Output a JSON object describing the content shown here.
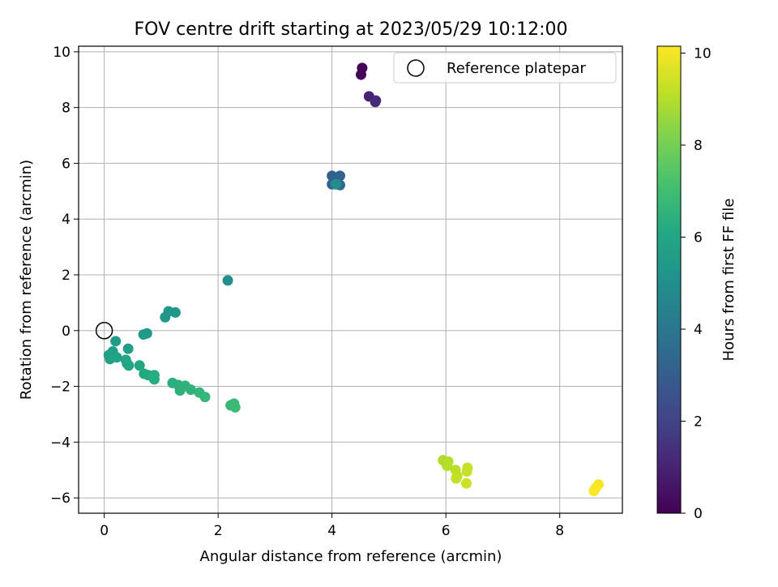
{
  "chart_data": {
    "type": "scatter",
    "title": "FOV centre drift starting at 2023/05/29 10:12:00",
    "xlabel": "Angular distance from reference (arcmin)",
    "ylabel": "Rotation from reference (arcmin)",
    "xlim": [
      -0.45,
      9.1
    ],
    "ylim": [
      -6.55,
      10.2
    ],
    "x_ticks": [
      "0",
      "2",
      "4",
      "6",
      "8"
    ],
    "y_ticks": [
      "−6",
      "−4",
      "−2",
      "0",
      "2",
      "4",
      "6",
      "8",
      "10"
    ],
    "grid": true,
    "legend": {
      "position": "top-right",
      "entries": [
        "Reference platepar"
      ]
    },
    "reference_point": {
      "x": 0,
      "y": 0
    },
    "colorbar": {
      "label": "Hours from first FF file",
      "colormap": "viridis",
      "range": [
        0,
        10.15
      ],
      "ticks": [
        "0",
        "2",
        "4",
        "6",
        "8",
        "10"
      ]
    },
    "points": [
      {
        "x": 4.53,
        "y": 9.42,
        "h": 0.05
      },
      {
        "x": 4.51,
        "y": 9.18,
        "h": 0.15
      },
      {
        "x": 4.65,
        "y": 8.4,
        "h": 1.0
      },
      {
        "x": 4.77,
        "y": 8.25,
        "h": 1.15
      },
      {
        "x": 4.76,
        "y": 8.2,
        "h": 1.25
      },
      {
        "x": 4.0,
        "y": 5.55,
        "h": 3.1
      },
      {
        "x": 4.14,
        "y": 5.55,
        "h": 3.2
      },
      {
        "x": 4.0,
        "y": 5.25,
        "h": 3.3
      },
      {
        "x": 4.14,
        "y": 5.22,
        "h": 3.4
      },
      {
        "x": 4.07,
        "y": 5.25,
        "h": 4.9
      },
      {
        "x": 2.17,
        "y": 1.8,
        "h": 5.05
      },
      {
        "x": 1.13,
        "y": 0.69,
        "h": 5.3
      },
      {
        "x": 1.25,
        "y": 0.65,
        "h": 5.35
      },
      {
        "x": 1.07,
        "y": 0.48,
        "h": 5.4
      },
      {
        "x": 0.75,
        "y": -0.1,
        "h": 5.45
      },
      {
        "x": 0.69,
        "y": -0.14,
        "h": 5.5
      },
      {
        "x": 0.2,
        "y": -0.38,
        "h": 5.55
      },
      {
        "x": 0.42,
        "y": -0.65,
        "h": 5.6
      },
      {
        "x": 0.15,
        "y": -0.75,
        "h": 5.65
      },
      {
        "x": 0.08,
        "y": -0.88,
        "h": 5.7
      },
      {
        "x": 0.13,
        "y": -0.95,
        "h": 5.75
      },
      {
        "x": 0.1,
        "y": -1.02,
        "h": 5.8
      },
      {
        "x": 0.22,
        "y": -0.96,
        "h": 5.85
      },
      {
        "x": 0.38,
        "y": -1.05,
        "h": 5.9
      },
      {
        "x": 0.43,
        "y": -1.25,
        "h": 5.95
      },
      {
        "x": 0.4,
        "y": -1.18,
        "h": 6.0
      },
      {
        "x": 0.62,
        "y": -1.25,
        "h": 6.05
      },
      {
        "x": 0.7,
        "y": -1.55,
        "h": 6.1
      },
      {
        "x": 0.77,
        "y": -1.6,
        "h": 6.15
      },
      {
        "x": 0.88,
        "y": -1.6,
        "h": 6.2
      },
      {
        "x": 0.88,
        "y": -1.75,
        "h": 6.25
      },
      {
        "x": 1.2,
        "y": -1.88,
        "h": 6.35
      },
      {
        "x": 1.3,
        "y": -1.95,
        "h": 6.4
      },
      {
        "x": 1.33,
        "y": -2.15,
        "h": 6.45
      },
      {
        "x": 1.42,
        "y": -1.98,
        "h": 6.5
      },
      {
        "x": 1.52,
        "y": -2.12,
        "h": 6.55
      },
      {
        "x": 1.67,
        "y": -2.22,
        "h": 6.6
      },
      {
        "x": 1.77,
        "y": -2.38,
        "h": 6.7
      },
      {
        "x": 2.22,
        "y": -2.68,
        "h": 6.75
      },
      {
        "x": 2.28,
        "y": -2.62,
        "h": 6.8
      },
      {
        "x": 2.3,
        "y": -2.75,
        "h": 6.85
      },
      {
        "x": 5.95,
        "y": -4.65,
        "h": 8.95
      },
      {
        "x": 6.04,
        "y": -4.7,
        "h": 9.0
      },
      {
        "x": 6.02,
        "y": -4.85,
        "h": 9.05
      },
      {
        "x": 6.17,
        "y": -5.0,
        "h": 9.1
      },
      {
        "x": 6.2,
        "y": -5.22,
        "h": 9.15
      },
      {
        "x": 6.18,
        "y": -5.3,
        "h": 9.2
      },
      {
        "x": 6.38,
        "y": -4.92,
        "h": 9.25
      },
      {
        "x": 6.37,
        "y": -5.05,
        "h": 9.3
      },
      {
        "x": 6.36,
        "y": -5.48,
        "h": 9.35
      },
      {
        "x": 8.68,
        "y": -5.52,
        "h": 10.0
      },
      {
        "x": 8.63,
        "y": -5.65,
        "h": 10.05
      },
      {
        "x": 8.6,
        "y": -5.75,
        "h": 10.1
      }
    ]
  }
}
